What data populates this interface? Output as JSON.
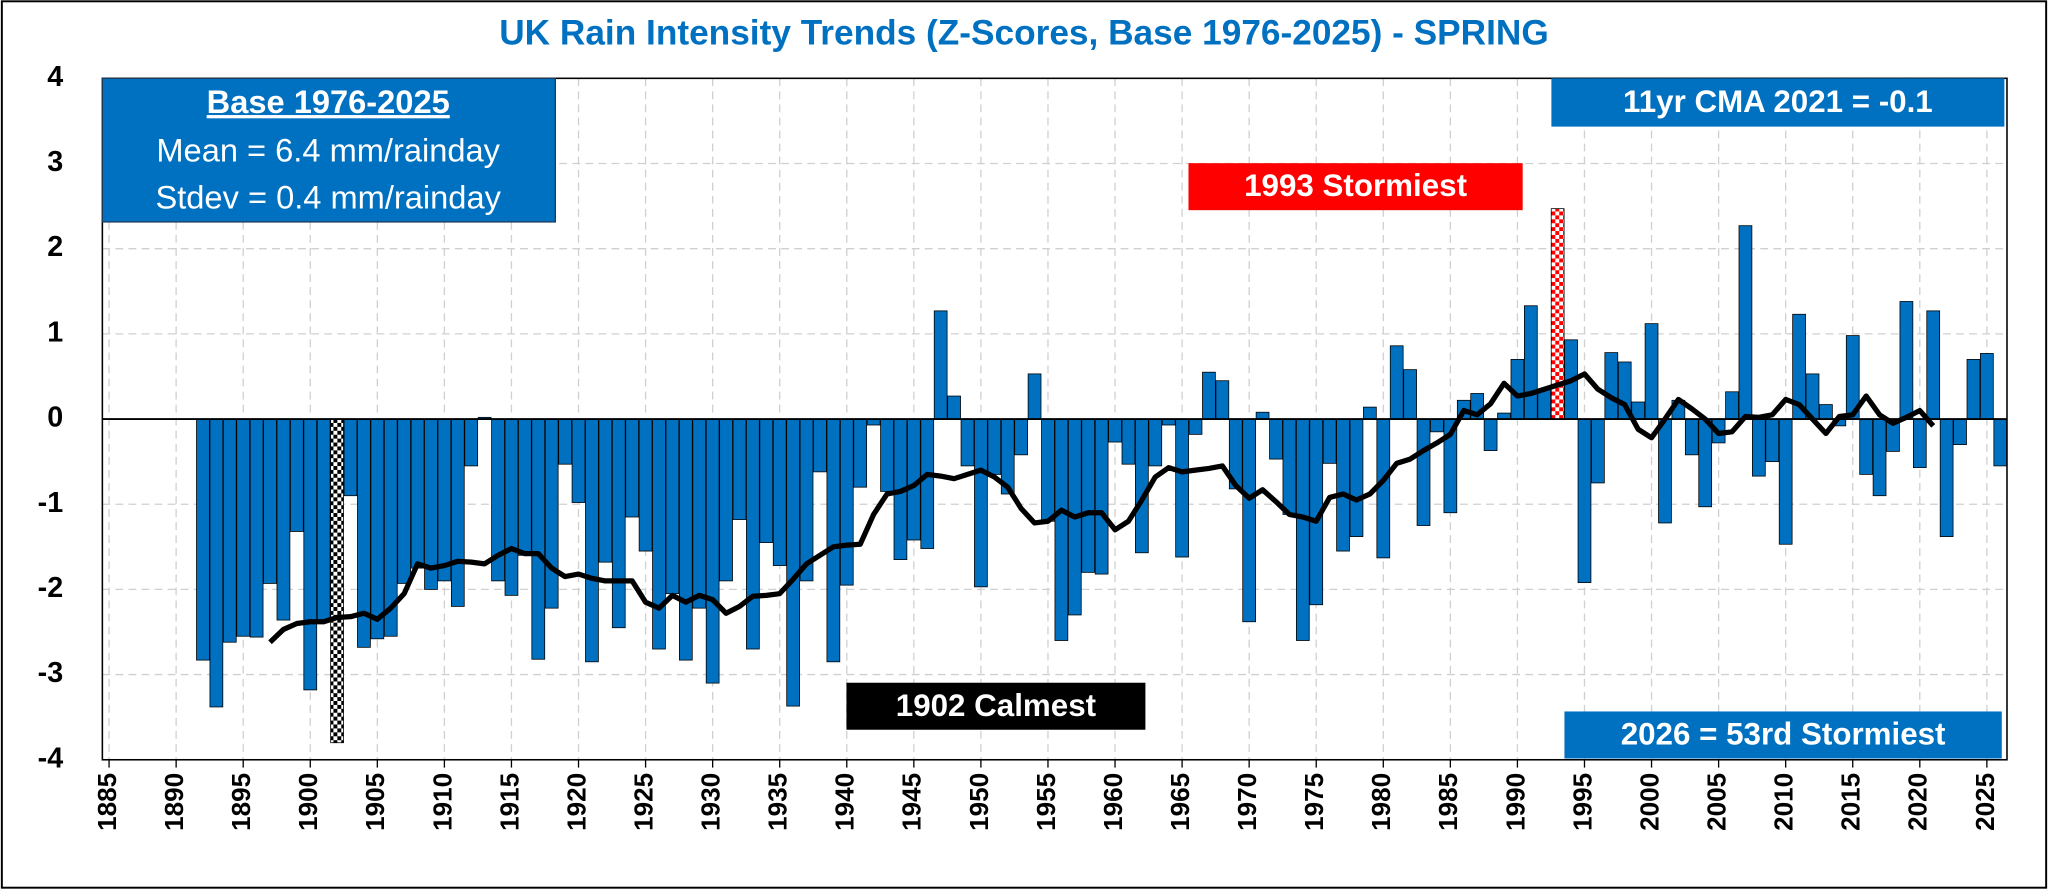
{
  "chart_data": {
    "type": "bar",
    "title": "UK Rain Intensity Trends (Z-Scores, Base 1976-2025) - SPRING",
    "x": [
      1892,
      1893,
      1894,
      1895,
      1896,
      1897,
      1898,
      1899,
      1900,
      1901,
      1902,
      1903,
      1904,
      1905,
      1906,
      1907,
      1908,
      1909,
      1910,
      1911,
      1912,
      1913,
      1914,
      1915,
      1916,
      1917,
      1918,
      1919,
      1920,
      1921,
      1922,
      1923,
      1924,
      1925,
      1926,
      1927,
      1928,
      1929,
      1930,
      1931,
      1932,
      1933,
      1934,
      1935,
      1936,
      1937,
      1938,
      1939,
      1940,
      1941,
      1942,
      1943,
      1944,
      1945,
      1946,
      1947,
      1948,
      1949,
      1950,
      1951,
      1952,
      1953,
      1954,
      1955,
      1956,
      1957,
      1958,
      1959,
      1960,
      1961,
      1962,
      1963,
      1964,
      1965,
      1966,
      1967,
      1968,
      1969,
      1970,
      1971,
      1972,
      1973,
      1974,
      1975,
      1976,
      1977,
      1978,
      1979,
      1980,
      1981,
      1982,
      1983,
      1984,
      1985,
      1986,
      1987,
      1988,
      1989,
      1990,
      1991,
      1992,
      1993,
      1994,
      1995,
      1996,
      1997,
      1998,
      1999,
      2000,
      2001,
      2002,
      2003,
      2004,
      2005,
      2006,
      2007,
      2008,
      2009,
      2010,
      2011,
      2012,
      2013,
      2014,
      2015,
      2016,
      2017,
      2018,
      2019,
      2020,
      2021,
      2022,
      2023,
      2024,
      2025,
      2026
    ],
    "series": [
      {
        "type": "bar",
        "color": "#0070c0",
        "values": [
          -2.83,
          -3.38,
          -2.62,
          -2.55,
          -2.56,
          -1.93,
          -2.36,
          -1.32,
          -3.18,
          -2.36,
          -3.8,
          -0.9,
          -2.68,
          -2.58,
          -2.55,
          -1.93,
          -1.75,
          -2.0,
          -1.9,
          -2.2,
          -0.55,
          0.02,
          -1.9,
          -2.07,
          -1.6,
          -2.82,
          -2.22,
          -0.53,
          -0.98,
          -2.85,
          -1.68,
          -2.45,
          -1.15,
          -1.55,
          -2.7,
          -2.05,
          -2.83,
          -2.22,
          -3.1,
          -1.9,
          -1.18,
          -2.7,
          -1.45,
          -1.72,
          -3.37,
          -1.9,
          -0.62,
          -2.85,
          -1.95,
          -0.8,
          -0.07,
          -0.85,
          -1.65,
          -1.42,
          -1.52,
          1.27,
          0.27,
          -0.55,
          -1.97,
          -0.65,
          -0.88,
          -0.42,
          0.53,
          -1.2,
          -2.6,
          -2.3,
          -1.8,
          -1.82,
          -0.27,
          -0.53,
          -1.57,
          -0.55,
          -0.07,
          -1.62,
          -0.18,
          0.55,
          0.45,
          -0.82,
          -2.38,
          0.08,
          -0.47,
          -1.12,
          -2.6,
          -2.18,
          -0.52,
          -1.55,
          -1.38,
          0.14,
          -1.63,
          0.86,
          0.58,
          -1.25,
          -0.15,
          -1.1,
          0.22,
          0.3,
          -0.37,
          0.07,
          0.7,
          1.33,
          0.35,
          2.47,
          0.93,
          -1.92,
          -0.75,
          0.78,
          0.67,
          0.2,
          1.12,
          -1.22,
          0.22,
          -0.42,
          -1.03,
          -0.28,
          0.32,
          2.27,
          -0.67,
          -0.5,
          -1.47,
          1.23,
          0.53,
          0.17,
          -0.08,
          0.98,
          -0.65,
          -0.9,
          -0.38,
          1.38,
          -0.57,
          1.27,
          -1.38,
          -0.3,
          0.7,
          0.77,
          -0.55
        ]
      },
      {
        "type": "line",
        "color": "#000000",
        "values": [
          null,
          null,
          null,
          null,
          null,
          -2.62,
          -2.47,
          -2.4,
          -2.38,
          -2.38,
          -2.33,
          -2.32,
          -2.28,
          -2.35,
          -2.22,
          -2.05,
          -1.7,
          -1.75,
          -1.72,
          -1.67,
          -1.68,
          -1.7,
          -1.6,
          -1.52,
          -1.58,
          -1.58,
          -1.75,
          -1.85,
          -1.82,
          -1.87,
          -1.9,
          -1.9,
          -1.9,
          -2.15,
          -2.22,
          -2.07,
          -2.15,
          -2.07,
          -2.12,
          -2.28,
          -2.2,
          -2.08,
          -2.07,
          -2.05,
          -1.88,
          -1.7,
          -1.6,
          -1.5,
          -1.48,
          -1.47,
          -1.12,
          -0.88,
          -0.85,
          -0.78,
          -0.65,
          -0.67,
          -0.7,
          -0.65,
          -0.6,
          -0.68,
          -0.8,
          -1.05,
          -1.22,
          -1.2,
          -1.07,
          -1.15,
          -1.1,
          -1.1,
          -1.3,
          -1.2,
          -0.95,
          -0.68,
          -0.57,
          -0.62,
          -0.6,
          -0.58,
          -0.55,
          -0.78,
          -0.93,
          -0.83,
          -0.97,
          -1.12,
          -1.15,
          -1.2,
          -0.92,
          -0.88,
          -0.95,
          -0.88,
          -0.72,
          -0.52,
          -0.47,
          -0.37,
          -0.28,
          -0.18,
          0.1,
          0.05,
          0.18,
          0.42,
          0.27,
          0.3,
          0.35,
          0.4,
          0.45,
          0.53,
          0.35,
          0.25,
          0.17,
          -0.12,
          -0.22,
          0.0,
          0.23,
          0.12,
          0.0,
          -0.17,
          -0.15,
          0.03,
          0.02,
          0.05,
          0.23,
          0.17,
          0.0,
          -0.17,
          0.03,
          0.05,
          0.27,
          0.05,
          -0.05,
          0.02,
          0.1,
          -0.08,
          null,
          null,
          null,
          null,
          null
        ]
      }
    ],
    "extreme_colors": {
      "min": "#000000",
      "max": "#ff0000"
    },
    "xlim": [
      1884.5,
      2026.5
    ],
    "xticks": [
      1885,
      1890,
      1895,
      1900,
      1905,
      1910,
      1915,
      1920,
      1925,
      1930,
      1935,
      1940,
      1945,
      1950,
      1955,
      1960,
      1965,
      1970,
      1975,
      1980,
      1985,
      1990,
      1995,
      2000,
      2005,
      2010,
      2015,
      2020,
      2025
    ],
    "ylim": [
      -4,
      4
    ],
    "yticks": [
      -4,
      -3,
      -2,
      -1,
      0,
      1,
      2,
      3,
      4
    ],
    "grid": true,
    "info_box": {
      "title": "Base 1976-2025",
      "lines": [
        "Mean = 6.4 mm/rainday",
        "Stdev = 0.4 mm/rainday"
      ],
      "color": "#0070c0"
    },
    "annotations": [
      {
        "text": "11yr CMA 2021 = -0.1",
        "color": "#0070c0"
      },
      {
        "text": "1993 Stormiest",
        "color": "#ff0000"
      },
      {
        "text": "1902 Calmest",
        "color": "#000000"
      },
      {
        "text": "2026 = 53rd Stormiest",
        "color": "#0070c0"
      }
    ]
  }
}
